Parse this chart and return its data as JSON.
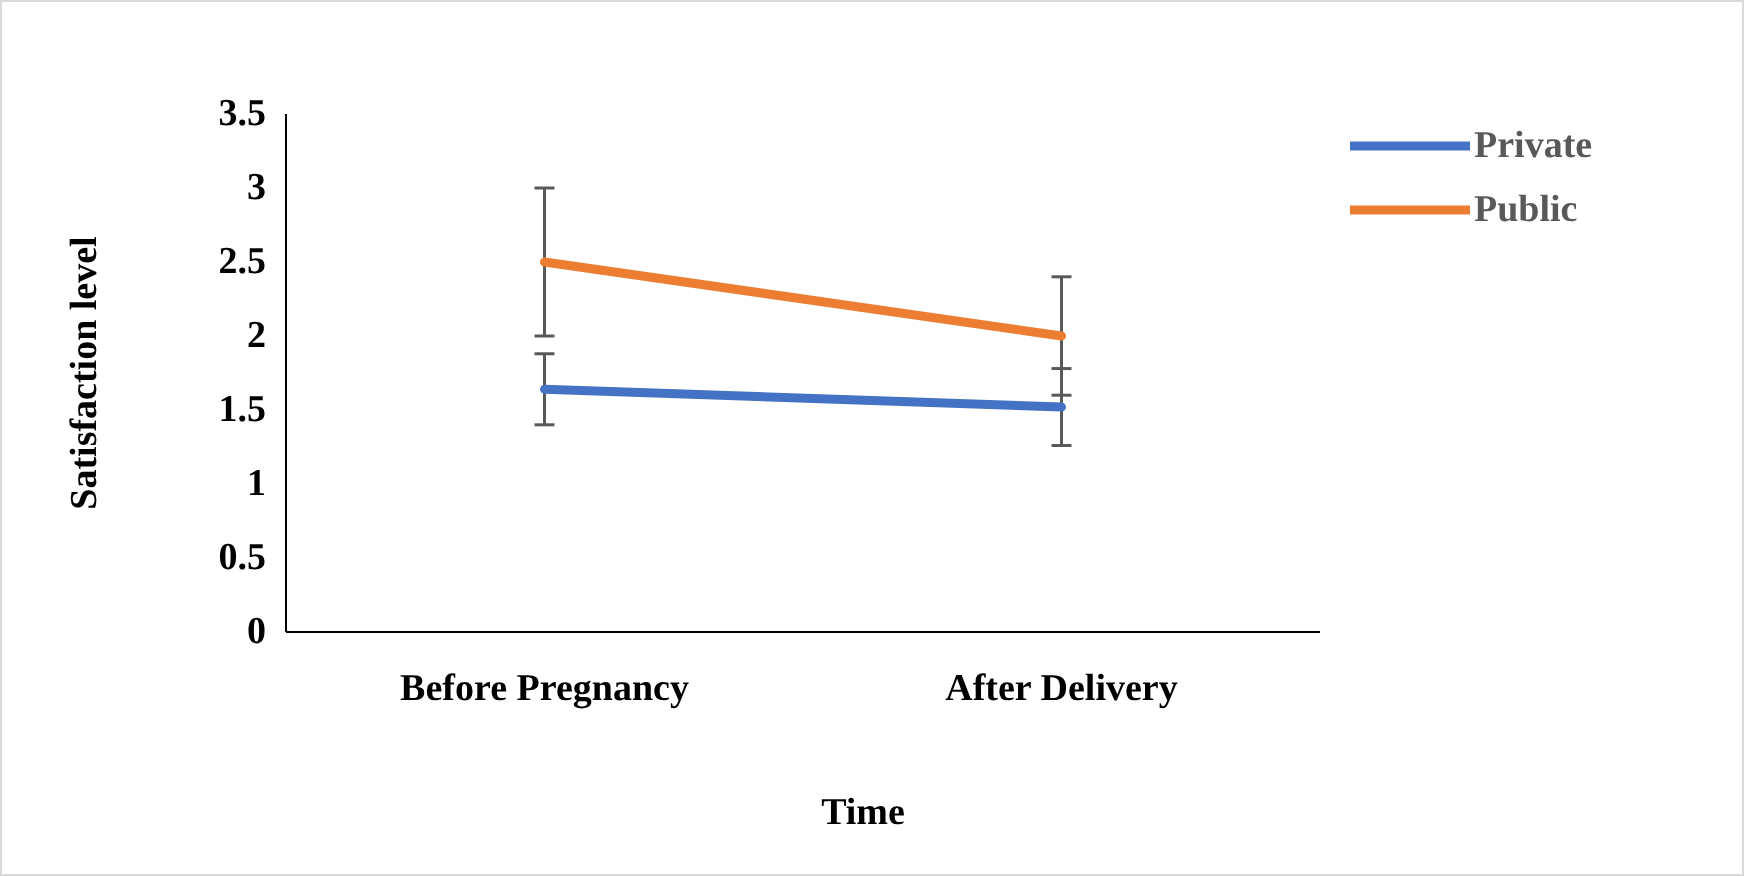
{
  "chart_data": {
    "type": "line",
    "xlabel": "Time",
    "ylabel": "Satisfaction level",
    "categories": [
      "Before Pregnancy",
      "After Delivery"
    ],
    "series": [
      {
        "name": "Private",
        "color": "#4472c4",
        "values": [
          1.64,
          1.52
        ],
        "errors": [
          0.24,
          0.26
        ]
      },
      {
        "name": "Public",
        "color": "#ed7d31",
        "values": [
          2.5,
          2.0
        ],
        "errors": [
          0.5,
          0.4
        ]
      }
    ],
    "ylim": [
      0,
      3.5
    ],
    "yticks": [
      0,
      0.5,
      1,
      1.5,
      2,
      2.5,
      3,
      3.5
    ],
    "grid": false,
    "legend": "top right",
    "marker": "none",
    "line_style": "solid"
  }
}
